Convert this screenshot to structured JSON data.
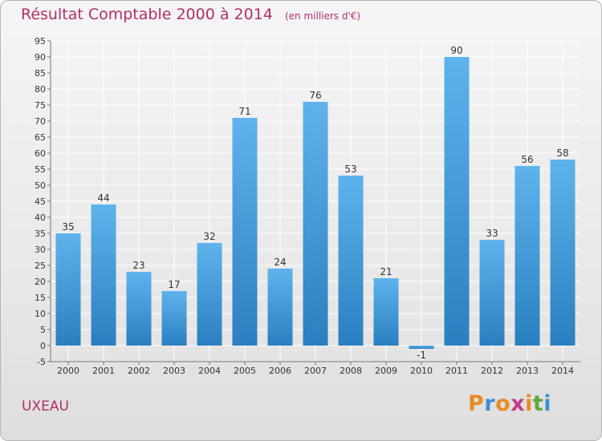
{
  "title": "Résultat Comptable 2000 à 2014",
  "unit_note": "(en milliers d'€)",
  "place": "UXEAU",
  "logo": {
    "text": "Proxiti",
    "colors": [
      "#e98c27",
      "#3e8fd0",
      "#e98c27",
      "#c23a8a",
      "#e98c27",
      "#5ea83a",
      "#3e8fd0"
    ]
  },
  "colors": {
    "title": "#b0306a",
    "bar_top": "#5fb3ec",
    "bar_bottom": "#2a7fc0",
    "grid": "#ffffff",
    "text": "#333333"
  },
  "chart_data": {
    "type": "bar",
    "title": "Résultat Comptable 2000 à 2014",
    "subtitle": "(en milliers d'€)",
    "categories": [
      "2000",
      "2001",
      "2002",
      "2003",
      "2004",
      "2005",
      "2006",
      "2007",
      "2008",
      "2009",
      "2010",
      "2011",
      "2012",
      "2013",
      "2014"
    ],
    "values": [
      35,
      44,
      23,
      17,
      32,
      71,
      24,
      76,
      53,
      21,
      -1,
      90,
      33,
      56,
      58
    ],
    "ylim": [
      -5,
      95
    ],
    "yticks": [
      -5,
      0,
      5,
      10,
      15,
      20,
      25,
      30,
      35,
      40,
      45,
      50,
      55,
      60,
      65,
      70,
      75,
      80,
      85,
      90,
      95
    ],
    "grid": true,
    "xlabel": "",
    "ylabel": ""
  }
}
